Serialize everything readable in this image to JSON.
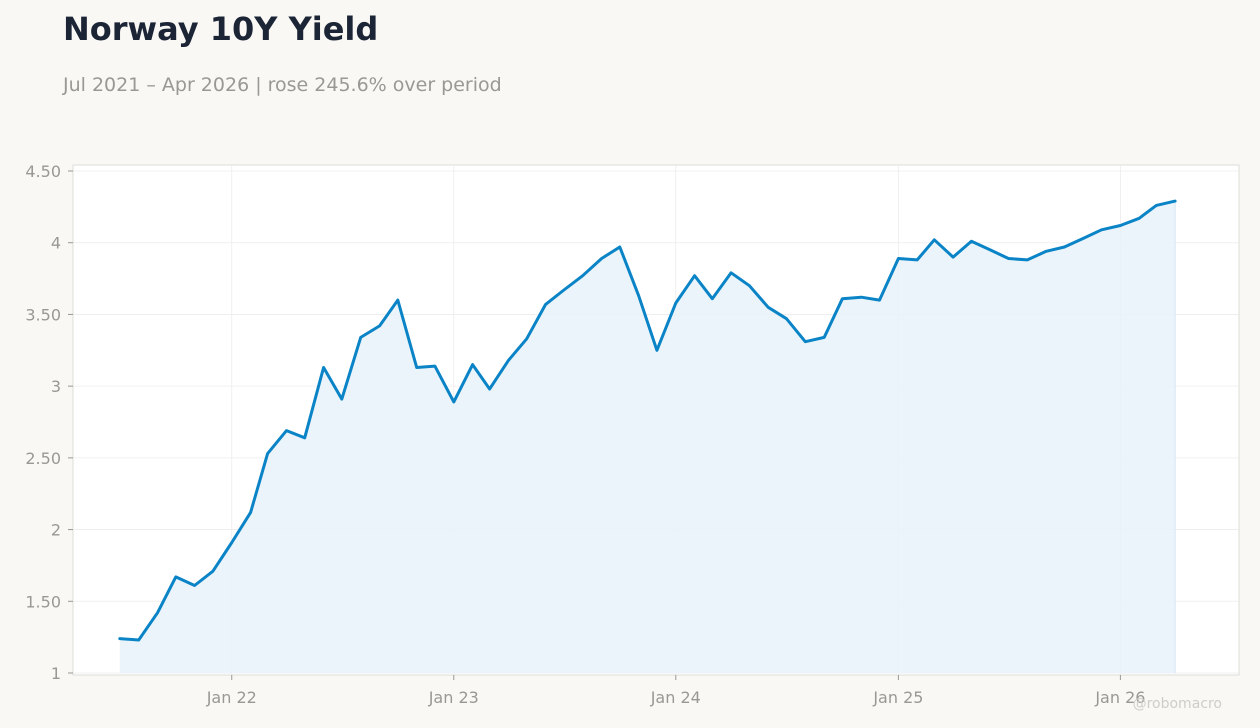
{
  "title": "Norway 10Y Yield",
  "subtitle": "Jul 2021 – Apr 2026 | rose 245.6% over period",
  "watermark": "@robomacro",
  "colors": {
    "line": "#0a84c6",
    "fill": "#e9f3fa",
    "grid": "#ececec",
    "axis": "#999893",
    "frame": "#dddcd8"
  },
  "chart_data": {
    "type": "area",
    "title": "Norway 10Y Yield",
    "xlabel": "",
    "ylabel": "",
    "grid": true,
    "ylim": [
      1,
      4.5
    ],
    "xlim": [
      "2021-04-15",
      "2026-07-15"
    ],
    "y_ticks": [
      {
        "value": 1,
        "label": "1"
      },
      {
        "value": 1.5,
        "label": "1.50"
      },
      {
        "value": 2,
        "label": "2"
      },
      {
        "value": 2.5,
        "label": "2.50"
      },
      {
        "value": 3,
        "label": "3"
      },
      {
        "value": 3.5,
        "label": "3.50"
      },
      {
        "value": 4,
        "label": "4"
      },
      {
        "value": 4.5,
        "label": "4.50"
      }
    ],
    "x_ticks": [
      {
        "value": "2022-01-01",
        "label": "Jan 22"
      },
      {
        "value": "2023-01-01",
        "label": "Jan 23"
      },
      {
        "value": "2024-01-01",
        "label": "Jan 24"
      },
      {
        "value": "2025-01-01",
        "label": "Jan 25"
      },
      {
        "value": "2026-01-01",
        "label": "Jan 26"
      }
    ],
    "series": [
      {
        "values": [
          [
            "2021-07-01",
            1.24
          ],
          [
            "2021-08-01",
            1.23
          ],
          [
            "2021-09-01",
            1.42
          ],
          [
            "2021-10-01",
            1.67
          ],
          [
            "2021-11-01",
            1.61
          ],
          [
            "2021-12-01",
            1.71
          ],
          [
            "2022-01-01",
            1.91
          ],
          [
            "2022-02-01",
            2.12
          ],
          [
            "2022-03-01",
            2.53
          ],
          [
            "2022-04-01",
            2.69
          ],
          [
            "2022-05-01",
            2.64
          ],
          [
            "2022-06-01",
            3.13
          ],
          [
            "2022-07-01",
            2.91
          ],
          [
            "2022-08-01",
            3.34
          ],
          [
            "2022-09-01",
            3.42
          ],
          [
            "2022-10-01",
            3.6
          ],
          [
            "2022-11-01",
            3.13
          ],
          [
            "2022-12-01",
            3.14
          ],
          [
            "2023-01-01",
            2.89
          ],
          [
            "2023-02-01",
            3.15
          ],
          [
            "2023-03-01",
            2.98
          ],
          [
            "2023-04-01",
            3.18
          ],
          [
            "2023-05-01",
            3.33
          ],
          [
            "2023-06-01",
            3.57
          ],
          [
            "2023-07-01",
            3.67
          ],
          [
            "2023-08-01",
            3.77
          ],
          [
            "2023-09-01",
            3.89
          ],
          [
            "2023-10-01",
            3.97
          ],
          [
            "2023-11-01",
            3.63
          ],
          [
            "2023-12-01",
            3.25
          ],
          [
            "2024-01-01",
            3.58
          ],
          [
            "2024-02-01",
            3.77
          ],
          [
            "2024-03-01",
            3.61
          ],
          [
            "2024-04-01",
            3.79
          ],
          [
            "2024-05-01",
            3.7
          ],
          [
            "2024-06-01",
            3.55
          ],
          [
            "2024-07-01",
            3.47
          ],
          [
            "2024-08-01",
            3.31
          ],
          [
            "2024-09-01",
            3.34
          ],
          [
            "2024-10-01",
            3.61
          ],
          [
            "2024-11-01",
            3.62
          ],
          [
            "2024-12-01",
            3.6
          ],
          [
            "2025-01-01",
            3.89
          ],
          [
            "2025-02-01",
            3.88
          ],
          [
            "2025-03-01",
            4.02
          ],
          [
            "2025-04-01",
            3.9
          ],
          [
            "2025-05-01",
            4.01
          ],
          [
            "2025-06-01",
            3.95
          ],
          [
            "2025-07-01",
            3.89
          ],
          [
            "2025-08-01",
            3.88
          ],
          [
            "2025-09-01",
            3.94
          ],
          [
            "2025-10-01",
            3.97
          ],
          [
            "2025-11-01",
            4.03
          ],
          [
            "2025-12-01",
            4.09
          ],
          [
            "2026-01-01",
            4.12
          ],
          [
            "2026-02-01",
            4.17
          ],
          [
            "2026-03-01",
            4.26
          ],
          [
            "2026-04-01",
            4.29
          ]
        ]
      }
    ]
  }
}
